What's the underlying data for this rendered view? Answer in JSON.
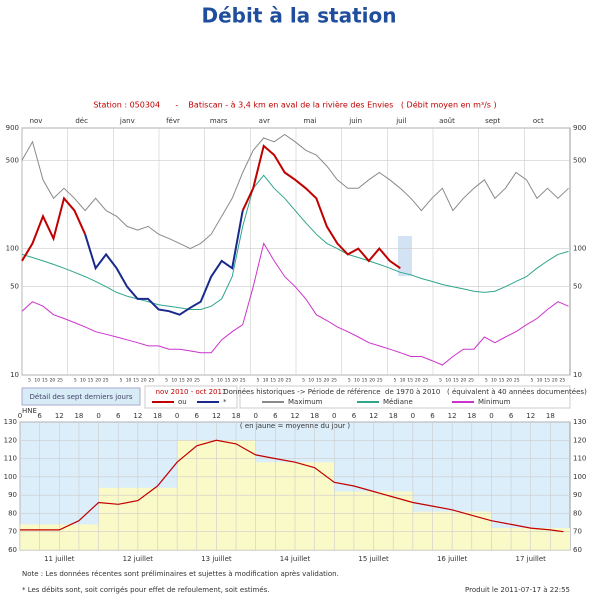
{
  "page": {
    "title": "Débit à la station",
    "notes": [
      "Note : Les données récentes sont préliminaires et sujettes à modification après validation.",
      "* Les débits sont, soit corrigés pour effet de refoulement, soit estimés."
    ],
    "produced": "Produit le 2011-07-17 à 22:55",
    "detail_link": "Détail des sept derniers jours"
  },
  "chart_data": [
    {
      "type": "line",
      "title": "Station : 050304      -    Batiscan - à 3,4 km en aval de la rivière des Envies   ( Débit moyen en m³/s )",
      "log_scale": true,
      "ylim": [
        10,
        900
      ],
      "yticks": [
        10,
        50,
        100,
        500,
        900
      ],
      "xlim": [
        0,
        365
      ],
      "categories": [
        "nov",
        "déc",
        "janv",
        "févr",
        "mars",
        "avr",
        "mai",
        "juin",
        "juil",
        "août",
        "sept",
        "oct"
      ],
      "day_ticks": [
        5,
        10,
        15,
        20,
        25
      ],
      "legend_title": "nov 2010 - oct 2011",
      "reference_title": "Données historiques -> Période de référence  de 1970 à 2010   ( équivalent à 40 années documentées)",
      "x": [
        0,
        7,
        14,
        21,
        28,
        35,
        42,
        49,
        56,
        63,
        70,
        77,
        84,
        91,
        98,
        105,
        112,
        119,
        126,
        133,
        140,
        147,
        154,
        161,
        168,
        175,
        182,
        189,
        196,
        203,
        210,
        217,
        224,
        231,
        238,
        245,
        252,
        259,
        266,
        273,
        280,
        287,
        294,
        301,
        308,
        315,
        322,
        329,
        336,
        343,
        350,
        357,
        364
      ],
      "series": [
        {
          "name": "Maximum",
          "color": "#8a8a8a",
          "legend": "reference",
          "values": [
            500,
            700,
            350,
            250,
            300,
            250,
            200,
            250,
            200,
            180,
            150,
            140,
            150,
            130,
            120,
            110,
            100,
            110,
            130,
            180,
            250,
            400,
            600,
            750,
            700,
            800,
            700,
            600,
            550,
            450,
            350,
            300,
            300,
            350,
            400,
            350,
            300,
            250,
            200,
            250,
            300,
            200,
            250,
            300,
            350,
            250,
            300,
            400,
            350,
            250,
            300,
            250,
            300
          ]
        },
        {
          "name": "Médiane",
          "color": "#2fa58c",
          "legend": "reference",
          "values": [
            90,
            85,
            80,
            75,
            70,
            65,
            60,
            55,
            50,
            45,
            42,
            40,
            38,
            36,
            35,
            34,
            33,
            33,
            35,
            40,
            60,
            150,
            300,
            380,
            300,
            250,
            200,
            160,
            130,
            110,
            100,
            90,
            85,
            80,
            75,
            70,
            65,
            62,
            58,
            55,
            52,
            50,
            48,
            46,
            45,
            46,
            50,
            55,
            60,
            70,
            80,
            90,
            95
          ]
        },
        {
          "name": "Minimum",
          "color": "#cc33cc",
          "legend": "reference",
          "values": [
            32,
            38,
            35,
            30,
            28,
            26,
            24,
            22,
            21,
            20,
            19,
            18,
            17,
            17,
            16,
            16,
            15.5,
            15,
            15,
            19,
            22,
            25,
            50,
            110,
            80,
            60,
            50,
            40,
            30,
            27,
            24,
            22,
            20,
            18,
            17,
            16,
            15,
            14,
            14,
            13,
            12,
            14,
            16,
            16,
            20,
            18,
            20,
            22,
            25,
            28,
            33,
            38,
            35
          ]
        },
        {
          "name": "ou",
          "color": "#c00000",
          "legend": "current",
          "values": [
            80,
            110,
            180,
            120,
            250,
            200,
            130,
            null,
            null,
            null,
            null,
            null,
            null,
            null,
            null,
            null,
            null,
            null,
            null,
            null,
            null,
            200,
            300,
            650,
            550,
            400,
            350,
            300,
            250,
            150,
            110,
            90,
            100,
            80,
            100,
            80,
            70,
            null,
            null,
            null,
            null,
            null,
            null,
            null,
            null,
            null,
            null,
            null,
            null,
            null,
            null,
            null,
            null
          ]
        },
        {
          "name": "*",
          "color": "#1a2a8c",
          "legend": "current",
          "values": [
            null,
            null,
            null,
            null,
            null,
            null,
            130,
            70,
            90,
            70,
            50,
            40,
            40,
            33,
            32,
            30,
            34,
            38,
            60,
            80,
            70,
            200,
            null,
            null,
            null,
            null,
            null,
            null,
            null,
            null,
            null,
            null,
            null,
            null,
            null,
            null,
            null,
            null,
            null,
            null,
            null,
            null,
            null,
            null,
            null,
            null,
            null,
            null,
            null,
            null,
            null,
            null,
            null
          ]
        }
      ]
    },
    {
      "type": "bar",
      "subtitle": "( en jaune = moyenne du jour )",
      "time_zone": "HNE",
      "ylim": [
        60,
        130
      ],
      "yticks": [
        60,
        70,
        80,
        90,
        100,
        110,
        120,
        130
      ],
      "xlim": [
        0,
        168
      ],
      "xticks": [
        0,
        6,
        12,
        18,
        {
          "value": 24,
          "label": "0"
        },
        {
          "value": 30,
          "label": "6"
        },
        {
          "value": 36,
          "label": "12"
        },
        {
          "value": 42,
          "label": "18"
        },
        {
          "value": 48,
          "label": "0"
        },
        {
          "value": 54,
          "label": "6"
        },
        {
          "value": 60,
          "label": "12"
        },
        {
          "value": 66,
          "label": "18"
        },
        {
          "value": 72,
          "label": "0"
        },
        {
          "value": 78,
          "label": "6"
        },
        {
          "value": 84,
          "label": "12"
        },
        {
          "value": 90,
          "label": "18"
        },
        {
          "value": 96,
          "label": "0"
        },
        {
          "value": 102,
          "label": "6"
        },
        {
          "value": 108,
          "label": "12"
        },
        {
          "value": 114,
          "label": "18"
        },
        {
          "value": 120,
          "label": "0"
        },
        {
          "value": 126,
          "label": "6"
        },
        {
          "value": 132,
          "label": "12"
        },
        {
          "value": 138,
          "label": "18"
        },
        {
          "value": 144,
          "label": "0"
        },
        {
          "value": 150,
          "label": "6"
        },
        {
          "value": 156,
          "label": "12"
        },
        {
          "value": 162,
          "label": "18"
        }
      ],
      "categories": [
        "11 juillet",
        "12 juillet",
        "13 juillet",
        "14 juillet",
        "15 juillet",
        "16 juillet",
        "17 juillet"
      ],
      "values": [
        74,
        94,
        120,
        108,
        92,
        81,
        72
      ],
      "color": "#fafac8",
      "x": [
        0,
        6,
        12,
        18,
        24,
        30,
        36,
        42,
        48,
        54,
        60,
        66,
        72,
        78,
        84,
        90,
        96,
        102,
        108,
        114,
        120,
        126,
        132,
        138,
        144,
        150,
        156,
        162,
        166
      ],
      "series": [
        {
          "color": "#c00000",
          "values": [
            71,
            71,
            71,
            76,
            86,
            85,
            87,
            95,
            108,
            117,
            120,
            118,
            112,
            110,
            108,
            105,
            97,
            95,
            92,
            89,
            86,
            84,
            82,
            79,
            76,
            74,
            72,
            71,
            70
          ]
        }
      ]
    }
  ]
}
